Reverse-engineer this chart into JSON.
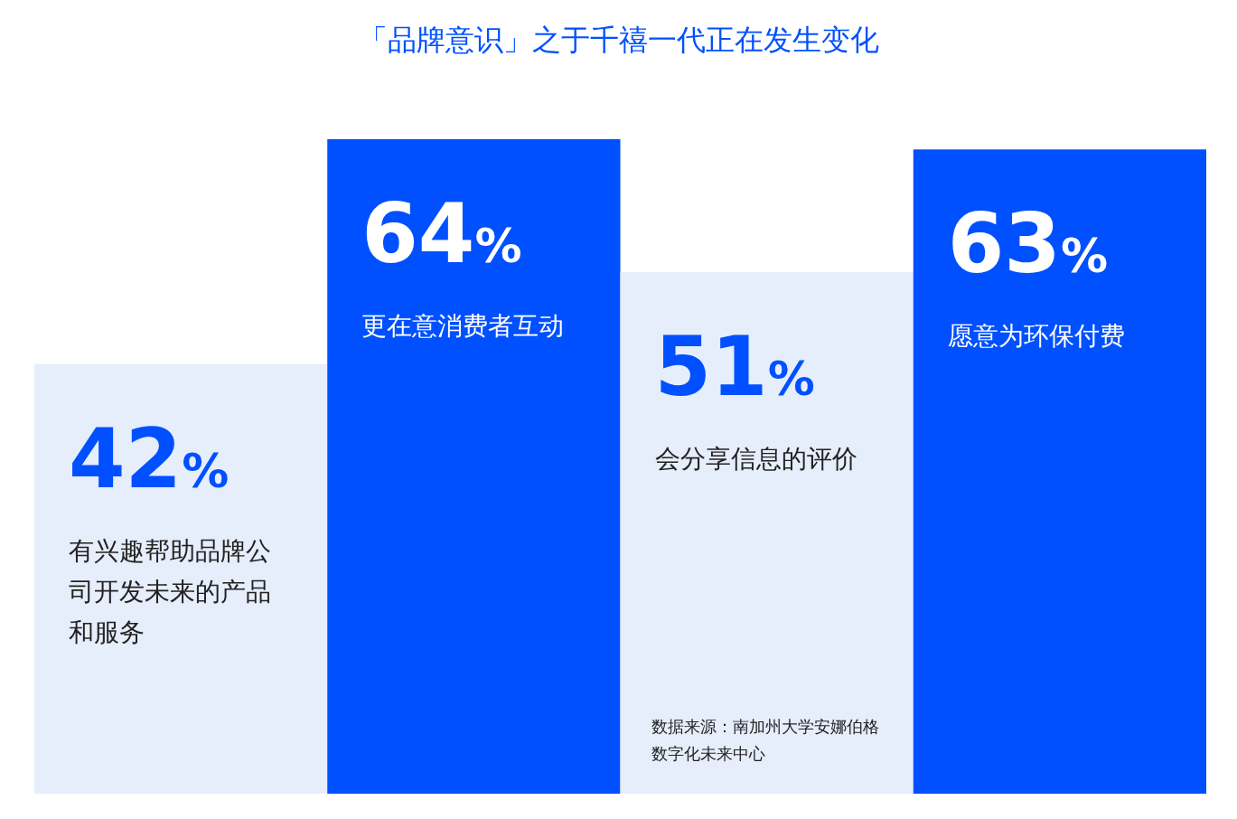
{
  "chart_data": {
    "type": "bar",
    "title": "「品牌意识」之于千禧一代正在发生变化",
    "categories": [
      "有兴趣帮助品牌公司开发未来的产品和服务",
      "更在意消费者互动",
      "会分享信息的评价",
      "愿意为环保付费"
    ],
    "values": [
      42,
      64,
      51,
      63
    ],
    "value_labels": [
      "42%",
      "64%",
      "51%",
      "63%"
    ],
    "colors": [
      "#e6edfb",
      "#0050ff",
      "#e6edfb",
      "#0050ff"
    ],
    "annotations": [
      "数据来源：南加州大学安娜伯格数字化未来中心"
    ]
  }
}
